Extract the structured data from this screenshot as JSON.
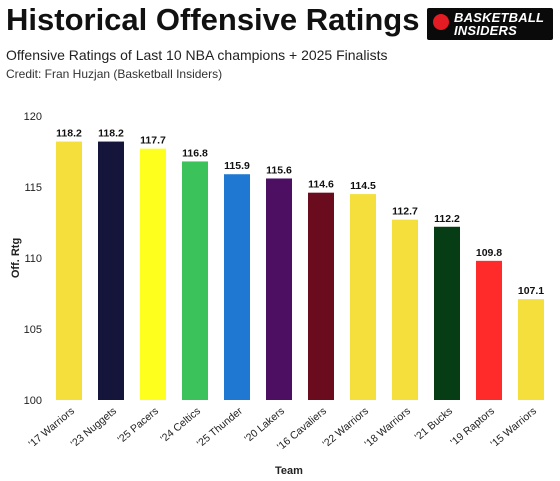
{
  "header": {
    "title": "Historical Offensive Ratings",
    "subtitle": "Offensive Ratings of Last 10 NBA champions + 2025 Finalists",
    "credit": "Credit: Fran Huzjan (Basketball Insiders)"
  },
  "logo": {
    "line1": "BASKETBALL",
    "line2": "INSIDERS",
    "accent_color": "#e31b23"
  },
  "chart_data": {
    "type": "bar",
    "xlabel": "Team",
    "ylabel": "Off. Rtg",
    "ylim": [
      100,
      120
    ],
    "yticks": [
      "100",
      "105",
      "110",
      "115",
      "120"
    ],
    "grid": false,
    "categories": [
      "'17 Warriors",
      "'23 Nuggets",
      "'25 Pacers",
      "'24 Celtics",
      "'25 Thunder",
      "'20 Lakers",
      "'16 Cavaliers",
      "'22 Warriors",
      "'18 Warriors",
      "'21 Bucks",
      "'19 Raptors",
      "'15 Warriors"
    ],
    "values": [
      118.2,
      118.2,
      117.7,
      116.8,
      115.9,
      115.6,
      114.6,
      114.5,
      112.7,
      112.2,
      109.8,
      107.1
    ],
    "value_labels": [
      "118.2",
      "118.2",
      "117.7",
      "116.8",
      "115.9",
      "115.6",
      "114.6",
      "114.5",
      "112.7",
      "112.2",
      "109.8",
      "107.1"
    ],
    "colors": [
      "#f4df3c",
      "#15143a",
      "#ffff1e",
      "#3cc25b",
      "#1f78d1",
      "#4d0f62",
      "#6b0c1e",
      "#f4df3c",
      "#f4df3c",
      "#073d14",
      "#ff2a2a",
      "#f4df3c"
    ]
  }
}
